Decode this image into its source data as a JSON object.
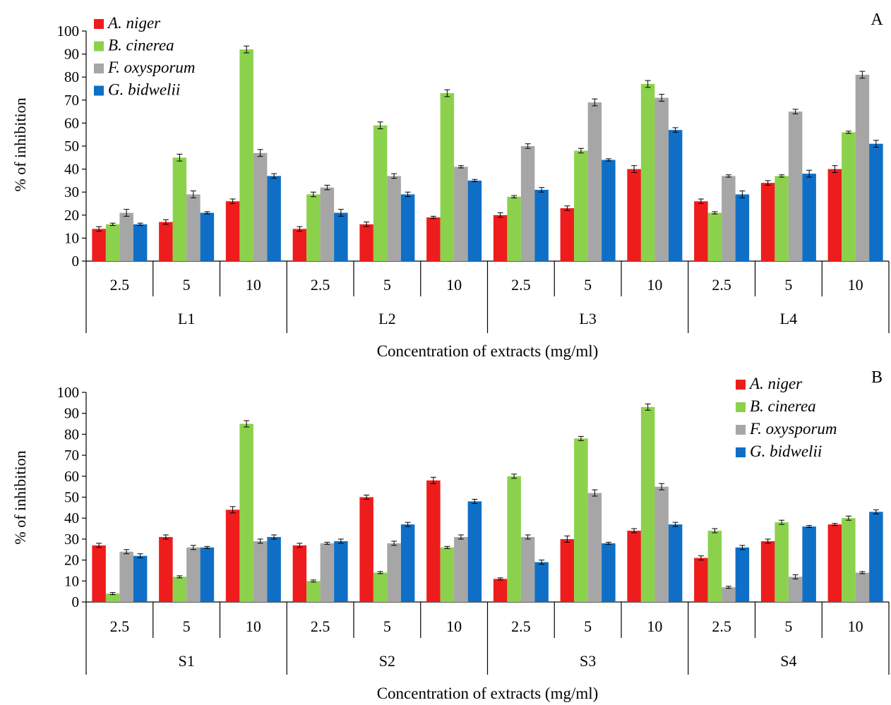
{
  "series_meta": [
    {
      "name": "A. niger",
      "color": "#ee1c1c"
    },
    {
      "name": "B. cinerea",
      "color": "#8cd14c"
    },
    {
      "name": "F. oxysporum",
      "color": "#a6a6a6"
    },
    {
      "name": "G. bidwelii",
      "color": "#0f6fc6"
    }
  ],
  "chart_data": [
    {
      "type": "bar",
      "panel_label": "A",
      "ylabel": "% of inhibition",
      "xlabel": "Concentration of extracts (mg/ml)",
      "ylim": [
        0,
        100
      ],
      "yticks": [
        "0",
        "10",
        "20",
        "30",
        "40",
        "50",
        "60",
        "70",
        "80",
        "90",
        "100"
      ],
      "legend": "top-left",
      "groups": [
        "L1",
        "L2",
        "L3",
        "L4"
      ],
      "categories": [
        "2.5",
        "5",
        "10",
        "2.5",
        "5",
        "10",
        "2.5",
        "5",
        "10",
        "2.5",
        "5",
        "10"
      ],
      "series": [
        {
          "name": "A. niger",
          "values": [
            14,
            17,
            26,
            14,
            16,
            19,
            20,
            23,
            40,
            26,
            34,
            40
          ],
          "errors": [
            1,
            1,
            1,
            1,
            1,
            0.5,
            1,
            1,
            1.5,
            1,
            1,
            1.5
          ]
        },
        {
          "name": "B. cinerea",
          "values": [
            16,
            45,
            92,
            29,
            59,
            73,
            28,
            48,
            77,
            21,
            37,
            56
          ],
          "errors": [
            0.5,
            1.5,
            1.5,
            1,
            1.5,
            1.5,
            0.5,
            1,
            1.5,
            0.5,
            0.5,
            0.5
          ]
        },
        {
          "name": "F. oxysporum",
          "values": [
            21,
            29,
            47,
            32,
            37,
            41,
            50,
            69,
            71,
            37,
            65,
            81
          ],
          "errors": [
            1.5,
            1.5,
            1.5,
            1,
            1,
            0.5,
            1,
            1.5,
            1.5,
            0.5,
            1,
            1.5
          ]
        },
        {
          "name": "G. bidwelii",
          "values": [
            16,
            21,
            37,
            21,
            29,
            35,
            31,
            44,
            57,
            29,
            38,
            51
          ],
          "errors": [
            0.5,
            0.5,
            1,
            1.5,
            1,
            0.5,
            1,
            0.5,
            1,
            1.5,
            1.5,
            1.5
          ]
        }
      ]
    },
    {
      "type": "bar",
      "panel_label": "B",
      "ylabel": "% of inhibition",
      "xlabel": "Concentration of extracts (mg/ml)",
      "ylim": [
        0,
        100
      ],
      "yticks": [
        "0",
        "10",
        "20",
        "30",
        "40",
        "50",
        "60",
        "70",
        "80",
        "90",
        "100"
      ],
      "legend": "top-right",
      "groups": [
        "S1",
        "S2",
        "S3",
        "S4"
      ],
      "categories": [
        "2.5",
        "5",
        "10",
        "2.5",
        "5",
        "10",
        "2.5",
        "5",
        "10",
        "2.5",
        "5",
        "10"
      ],
      "series": [
        {
          "name": "A. niger",
          "values": [
            27,
            31,
            44,
            27,
            50,
            58,
            11,
            30,
            34,
            21,
            29,
            37
          ],
          "errors": [
            1,
            1,
            1.5,
            1,
            1,
            1.5,
            0.5,
            1.5,
            1,
            1,
            1,
            0.5
          ]
        },
        {
          "name": "B. cinerea",
          "values": [
            4,
            12,
            85,
            10,
            14,
            26,
            60,
            78,
            93,
            34,
            38,
            40
          ],
          "errors": [
            0.5,
            0.5,
            1.5,
            0.5,
            0.5,
            0.5,
            1,
            1,
            1.5,
            1,
            1,
            1
          ]
        },
        {
          "name": "F. oxysporum",
          "values": [
            24,
            26,
            29,
            28,
            28,
            31,
            31,
            52,
            55,
            7,
            12,
            14
          ],
          "errors": [
            1,
            1,
            1,
            0.5,
            1,
            1,
            1,
            1.5,
            1.5,
            0.5,
            1,
            0.5
          ]
        },
        {
          "name": "G. bidwelii",
          "values": [
            22,
            26,
            31,
            29,
            37,
            48,
            19,
            28,
            37,
            26,
            36,
            43
          ],
          "errors": [
            1,
            0.5,
            1,
            1,
            1,
            1,
            1,
            0.5,
            1,
            1,
            0.5,
            1
          ]
        }
      ]
    }
  ]
}
